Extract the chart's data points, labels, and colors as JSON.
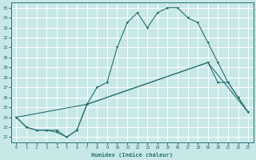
{
  "xlabel": "Humidex (Indice chaleur)",
  "xlim": [
    -0.5,
    23.5
  ],
  "ylim": [
    21.5,
    35.5
  ],
  "xticks": [
    0,
    1,
    2,
    3,
    4,
    5,
    6,
    7,
    8,
    9,
    10,
    11,
    12,
    13,
    14,
    15,
    16,
    17,
    18,
    19,
    20,
    21,
    22,
    23
  ],
  "yticks": [
    22,
    23,
    24,
    25,
    26,
    27,
    28,
    29,
    30,
    31,
    32,
    33,
    34,
    35
  ],
  "background_color": "#c8e8e8",
  "line_color": "#2a7070",
  "grid_color": "#ffffff",
  "line1_x": [
    0,
    1,
    2,
    3,
    4,
    5,
    6,
    7,
    8,
    9,
    10,
    11,
    12,
    13,
    14,
    15,
    16,
    17,
    18,
    19,
    20,
    21,
    22,
    23
  ],
  "line1_y": [
    24,
    23,
    22.7,
    22.7,
    22.7,
    22,
    22.7,
    25.3,
    27,
    27.5,
    31,
    33.5,
    34.5,
    33,
    34.5,
    35,
    35,
    34,
    33.5,
    31.5,
    29.5,
    27.5,
    26,
    24.5
  ],
  "line2_x": [
    0,
    1,
    2,
    3,
    4,
    5,
    6,
    7,
    19,
    20,
    21,
    22,
    23
  ],
  "line2_y": [
    24,
    23,
    22.7,
    22.7,
    22.5,
    22,
    22.7,
    25.3,
    29.5,
    27.5,
    27.5,
    26,
    24.5
  ],
  "line3_x": [
    0,
    7,
    19,
    23
  ],
  "line3_y": [
    24,
    25.3,
    29.5,
    24.5
  ]
}
